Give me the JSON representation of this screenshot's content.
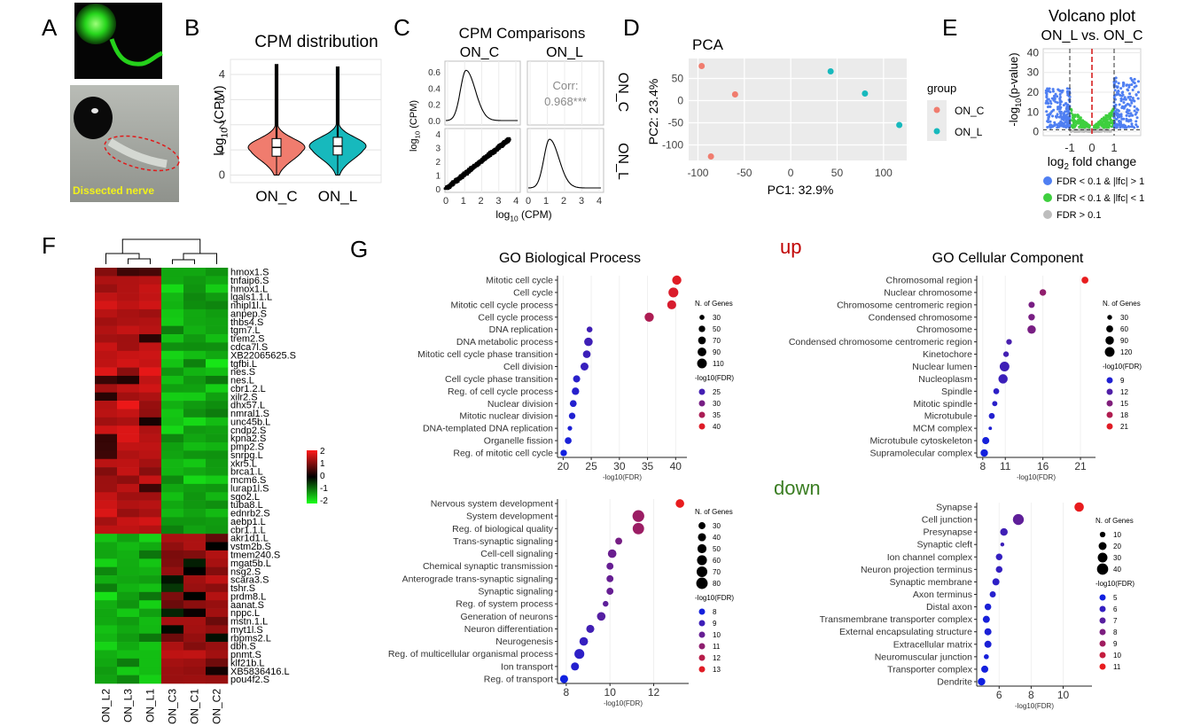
{
  "panels": {
    "A": {
      "letter": "A",
      "caption": "Dissected nerve"
    },
    "B": {
      "letter": "B"
    },
    "C": {
      "letter": "C"
    },
    "D": {
      "letter": "D"
    },
    "E": {
      "letter": "E"
    },
    "F": {
      "letter": "F"
    },
    "G": {
      "letter": "G",
      "up_label": "up",
      "down_label": "down"
    }
  },
  "colors": {
    "on_c": "#f07c6e",
    "on_l": "#17b9bd",
    "ns_gray": "#bdbdbd",
    "volc_blue": "#4f7ff2",
    "volc_green": "#3ecf3e",
    "accent_red": "#c00000",
    "accent_green": "#3a7d22"
  },
  "chart_data": [
    {
      "id": "B",
      "type": "violin",
      "title": "CPM distribution",
      "ylabel": "log10 (CPM)",
      "categories": [
        "ON_C",
        "ON_L"
      ],
      "ylim": [
        -0.3,
        4.6
      ],
      "yticks": [
        0,
        1,
        2,
        3,
        4
      ],
      "series": [
        {
          "name": "ON_C",
          "median": 1.1,
          "q1": 0.75,
          "q3": 1.45,
          "min": 0.0,
          "max": 4.4,
          "color": "#f07c6e"
        },
        {
          "name": "ON_L",
          "median": 1.15,
          "q1": 0.8,
          "q3": 1.5,
          "min": 0.0,
          "max": 4.3,
          "color": "#17b9bd"
        }
      ]
    },
    {
      "id": "C",
      "type": "scatter-matrix",
      "title": "CPM Comparisons",
      "columns": [
        "ON_C",
        "ON_L"
      ],
      "rows": [
        "ON_C",
        "ON_L"
      ],
      "xlabel": "log10 (CPM)",
      "ylabel": "log10 (CPM)",
      "xticks": [
        0,
        1,
        2,
        3,
        4
      ],
      "density_yticks": [
        "0.0",
        "0.2",
        "0.4",
        "0.6"
      ],
      "scatter_yticks": [
        "0",
        "1",
        "2",
        "3",
        "4"
      ],
      "correlation_label": "Corr:",
      "correlation_value": "0.968***"
    },
    {
      "id": "D",
      "type": "scatter",
      "title": "PCA",
      "xlabel": "PC1: 32.9%",
      "ylabel": "PC2: 23.4%",
      "xlim": [
        -110,
        125
      ],
      "ylim": [
        -135,
        95
      ],
      "xticks": [
        -100,
        -50,
        0,
        50,
        100
      ],
      "yticks": [
        50,
        0,
        -50,
        -100
      ],
      "legend_title": "group",
      "series": [
        {
          "name": "ON_C",
          "color": "#f07c6e",
          "points": [
            [
              -96,
              78
            ],
            [
              -60,
              14
            ],
            [
              -86,
              -126
            ]
          ]
        },
        {
          "name": "ON_L",
          "color": "#17b9bd",
          "points": [
            [
              43,
              66
            ],
            [
              80,
              16
            ],
            [
              117,
              -55
            ]
          ]
        }
      ]
    },
    {
      "id": "E",
      "type": "scatter",
      "title": "Volcano plot",
      "subtitle": "ON_L vs. ON_C",
      "xlabel": "log2 fold change",
      "ylabel": "-log10(p-value)",
      "xlim": [
        -2.2,
        2.2
      ],
      "ylim": [
        -2,
        42
      ],
      "xticks": [
        -1,
        0,
        1
      ],
      "yticks": [
        0,
        10,
        20,
        30,
        40
      ],
      "legend": [
        {
          "label": "FDR < 0.1 & |lfc| > 1",
          "color": "#4f7ff2"
        },
        {
          "label": "FDR < 0.1 & |lfc| < 1",
          "color": "#3ecf3e"
        },
        {
          "label": "FDR > 0.1",
          "color": "#bdbdbd"
        }
      ]
    },
    {
      "id": "F",
      "type": "heatmap",
      "columns": [
        "ON_L2",
        "ON_L3",
        "ON_L1",
        "ON_C3",
        "ON_C1",
        "ON_C2"
      ],
      "rows": [
        "hmox1.S",
        "tnfaip6.S",
        "hmox1.L",
        "lgals1.1.L",
        "nhipl1l.L",
        "anpep.S",
        "thbs4.S",
        "tgm7.L",
        "trem2.S",
        "cdca7l.S",
        "XB22065625.S",
        "tgfbi.L",
        "nes.S",
        "nes.L",
        "cbr1.2.L",
        "xilr2.S",
        "dhx57.L",
        "nmral1.S",
        "unc45b.L",
        "cndp2.S",
        "kpna2.S",
        "pmp2.S",
        "snrpg.L",
        "xkr5.L",
        "brca1.L",
        "mcm6.S",
        "lurap1l.S",
        "sgo2.L",
        "tuba8.L",
        "ednrb2.S",
        "aebp1.L",
        "cbr1.1.L",
        "akr1d1.L",
        "vstm2b.S",
        "tmem240.S",
        "mgat5b.L",
        "nsg2.S",
        "scara3.S",
        "tshr.S",
        "prdm8.L",
        "aanat.S",
        "nppc.L",
        "mstn.1.L",
        "myt1l.S",
        "rbpms2.L",
        "dbh.S",
        "pnmt.S",
        "klf21b.L",
        "XB5836416.L",
        "pou4f2.S"
      ],
      "color_scale": {
        "min": -2,
        "max": 2,
        "ticks": [
          "2",
          "1",
          "0",
          "-1",
          "-2"
        ]
      }
    },
    {
      "id": "G-bp-up",
      "type": "scatter",
      "title": "GO Biological Process",
      "xlabel": "-log10(FDR)",
      "xlim": [
        19,
        42
      ],
      "xticks": [
        20,
        25,
        30,
        35,
        40
      ],
      "size_legend_title": "N. of Genes",
      "size_legend": [
        30,
        50,
        70,
        90,
        110
      ],
      "color_legend_title": "-log10(FDR)",
      "color_legend": [
        25,
        30,
        35,
        40
      ],
      "color_range": [
        20,
        41
      ],
      "terms": [
        {
          "term": "Mitotic cell cycle",
          "x": 40.2,
          "n": 100
        },
        {
          "term": "Cell cycle",
          "x": 39.6,
          "n": 115
        },
        {
          "term": "Mitotic cell cycle process",
          "x": 39.3,
          "n": 95
        },
        {
          "term": "Cell cycle process",
          "x": 35.3,
          "n": 100
        },
        {
          "term": "DNA replication",
          "x": 24.7,
          "n": 40
        },
        {
          "term": "DNA metabolic process",
          "x": 24.5,
          "n": 85
        },
        {
          "term": "Mitotic cell cycle phase transition",
          "x": 24.2,
          "n": 70
        },
        {
          "term": "Cell division",
          "x": 23.8,
          "n": 75
        },
        {
          "term": "Cell cycle phase transition",
          "x": 22.4,
          "n": 60
        },
        {
          "term": "Reg. of cell cycle process",
          "x": 22.2,
          "n": 65
        },
        {
          "term": "Nuclear division",
          "x": 21.8,
          "n": 55
        },
        {
          "term": "Mitotic nuclear division",
          "x": 21.6,
          "n": 50
        },
        {
          "term": "DNA-templated DNA replication",
          "x": 21.2,
          "n": 25
        },
        {
          "term": "Organelle fission",
          "x": 20.9,
          "n": 55
        },
        {
          "term": "Reg. of mitotic cell cycle",
          "x": 20.1,
          "n": 50
        }
      ]
    },
    {
      "id": "G-cc-up",
      "type": "scatter",
      "title": "GO Cellular Component",
      "xlabel": "-log10(FDR)",
      "xlim": [
        7.2,
        23
      ],
      "xticks": [
        8,
        11,
        16,
        21
      ],
      "size_legend_title": "N. of Genes",
      "size_legend": [
        30,
        60,
        90,
        120
      ],
      "color_legend_title": "-log10(FDR)",
      "color_legend": [
        9,
        12,
        15,
        18,
        21
      ],
      "color_range": [
        8,
        21.5
      ],
      "terms": [
        {
          "term": "Chromosomal region",
          "x": 21.6,
          "n": 60
        },
        {
          "term": "Nuclear chromosome",
          "x": 16.0,
          "n": 55
        },
        {
          "term": "Chromosome centromeric region",
          "x": 14.5,
          "n": 50
        },
        {
          "term": "Condensed chromosome",
          "x": 14.5,
          "n": 55
        },
        {
          "term": "Chromosome",
          "x": 14.5,
          "n": 90
        },
        {
          "term": "Condensed chromosome centromeric region",
          "x": 11.5,
          "n": 40
        },
        {
          "term": "Kinetochore",
          "x": 11.1,
          "n": 40
        },
        {
          "term": "Nuclear lumen",
          "x": 10.9,
          "n": 120
        },
        {
          "term": "Nucleoplasm",
          "x": 10.7,
          "n": 110
        },
        {
          "term": "Spindle",
          "x": 9.8,
          "n": 45
        },
        {
          "term": "Mitotic spindle",
          "x": 9.6,
          "n": 35
        },
        {
          "term": "Microtubule",
          "x": 9.2,
          "n": 45
        },
        {
          "term": "MCM complex",
          "x": 9.0,
          "n": 15
        },
        {
          "term": "Microtubule cytoskeleton",
          "x": 8.4,
          "n": 65
        },
        {
          "term": "Supramolecular complex",
          "x": 8.2,
          "n": 70
        }
      ]
    },
    {
      "id": "G-bp-down",
      "type": "scatter",
      "xlabel": "-log10(FDR)",
      "xlim": [
        7.6,
        13.6
      ],
      "xticks": [
        8,
        10,
        12
      ],
      "size_legend_title": "N. of Genes",
      "size_legend": [
        30,
        40,
        50,
        60,
        70,
        80
      ],
      "color_legend_title": "-log10(FDR)",
      "color_legend": [
        8,
        9,
        10,
        11,
        12,
        13
      ],
      "color_range": [
        7.9,
        13.2
      ],
      "terms": [
        {
          "term": "Nervous system development",
          "x": 13.2,
          "n": 45
        },
        {
          "term": "System development",
          "x": 11.3,
          "n": 85
        },
        {
          "term": "Reg. of biological quality",
          "x": 11.3,
          "n": 80
        },
        {
          "term": "Trans-synaptic signaling",
          "x": 10.4,
          "n": 30
        },
        {
          "term": "Cell-cell signaling",
          "x": 10.1,
          "n": 45
        },
        {
          "term": "Chemical synaptic transmission",
          "x": 10.0,
          "n": 30
        },
        {
          "term": "Anterograde trans-synaptic signaling",
          "x": 10.0,
          "n": 30
        },
        {
          "term": "Synaptic signaling",
          "x": 10.0,
          "n": 30
        },
        {
          "term": "Reg. of system process",
          "x": 9.8,
          "n": 20
        },
        {
          "term": "Generation of neurons",
          "x": 9.6,
          "n": 45
        },
        {
          "term": "Neuron differentiation",
          "x": 9.1,
          "n": 40
        },
        {
          "term": "Neurogenesis",
          "x": 8.8,
          "n": 45
        },
        {
          "term": "Reg. of multicellular organismal process",
          "x": 8.6,
          "n": 60
        },
        {
          "term": "Ion transport",
          "x": 8.4,
          "n": 40
        },
        {
          "term": "Reg. of transport",
          "x": 7.9,
          "n": 40
        }
      ]
    },
    {
      "id": "G-cc-down",
      "type": "scatter",
      "xlabel": "-log10(FDR)",
      "xlim": [
        4.6,
        11.8
      ],
      "xticks": [
        6,
        8,
        10
      ],
      "size_legend_title": "N. of Genes",
      "size_legend": [
        10,
        20,
        30,
        40
      ],
      "color_legend_title": "-log10(FDR)",
      "color_legend": [
        5,
        6,
        7,
        8,
        9,
        10,
        11
      ],
      "color_range": [
        5,
        11
      ],
      "terms": [
        {
          "term": "Synapse",
          "x": 11.0,
          "n": 28
        },
        {
          "term": "Cell junction",
          "x": 7.2,
          "n": 38
        },
        {
          "term": "Presynapse",
          "x": 6.3,
          "n": 18
        },
        {
          "term": "Synaptic cleft",
          "x": 6.2,
          "n": 5
        },
        {
          "term": "Ion channel complex",
          "x": 6.0,
          "n": 14
        },
        {
          "term": "Neuron projection terminus",
          "x": 6.0,
          "n": 14
        },
        {
          "term": "Synaptic membrane",
          "x": 5.8,
          "n": 16
        },
        {
          "term": "Axon terminus",
          "x": 5.6,
          "n": 12
        },
        {
          "term": "Distal axon",
          "x": 5.3,
          "n": 14
        },
        {
          "term": "Transmembrane transporter complex",
          "x": 5.2,
          "n": 16
        },
        {
          "term": "External encapsulating structure",
          "x": 5.3,
          "n": 16
        },
        {
          "term": "Extracellular matrix",
          "x": 5.3,
          "n": 16
        },
        {
          "term": "Neuromuscular junction",
          "x": 5.2,
          "n": 8
        },
        {
          "term": "Transporter complex",
          "x": 5.1,
          "n": 16
        },
        {
          "term": "Dendrite",
          "x": 4.9,
          "n": 18
        }
      ]
    }
  ]
}
